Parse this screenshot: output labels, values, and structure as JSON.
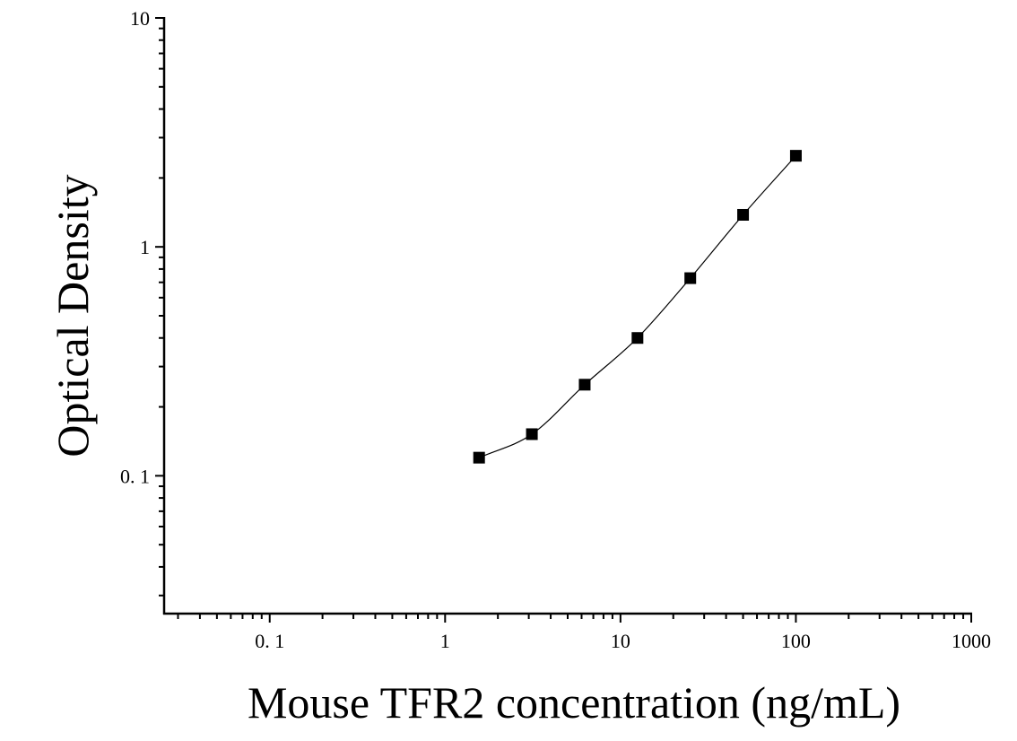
{
  "chart_data": {
    "type": "scatter",
    "title": "",
    "xlabel": "Mouse TFR2 concentration (ng/mL)",
    "ylabel": "Optical Density",
    "x_scale": "log",
    "y_scale": "log",
    "xlim": [
      0.025,
      1000
    ],
    "ylim": [
      0.025,
      10
    ],
    "x_ticks": [
      {
        "value": 0.1,
        "label": "0. 1"
      },
      {
        "value": 1,
        "label": "1"
      },
      {
        "value": 10,
        "label": "10"
      },
      {
        "value": 100,
        "label": "100"
      },
      {
        "value": 1000,
        "label": "1000"
      }
    ],
    "y_ticks": [
      {
        "value": 0.1,
        "label": "0. 1"
      },
      {
        "value": 1,
        "label": "1"
      },
      {
        "value": 10,
        "label": "10"
      }
    ],
    "grid": false,
    "legend": "none",
    "marker": "square",
    "marker_color": "#000000",
    "line_color": "#000000",
    "series": [
      {
        "x": [
          1.5625,
          3.125,
          6.25,
          12.5,
          25,
          50,
          100
        ],
        "y": [
          0.12,
          0.152,
          0.25,
          0.4,
          0.73,
          1.38,
          2.5
        ]
      }
    ]
  }
}
